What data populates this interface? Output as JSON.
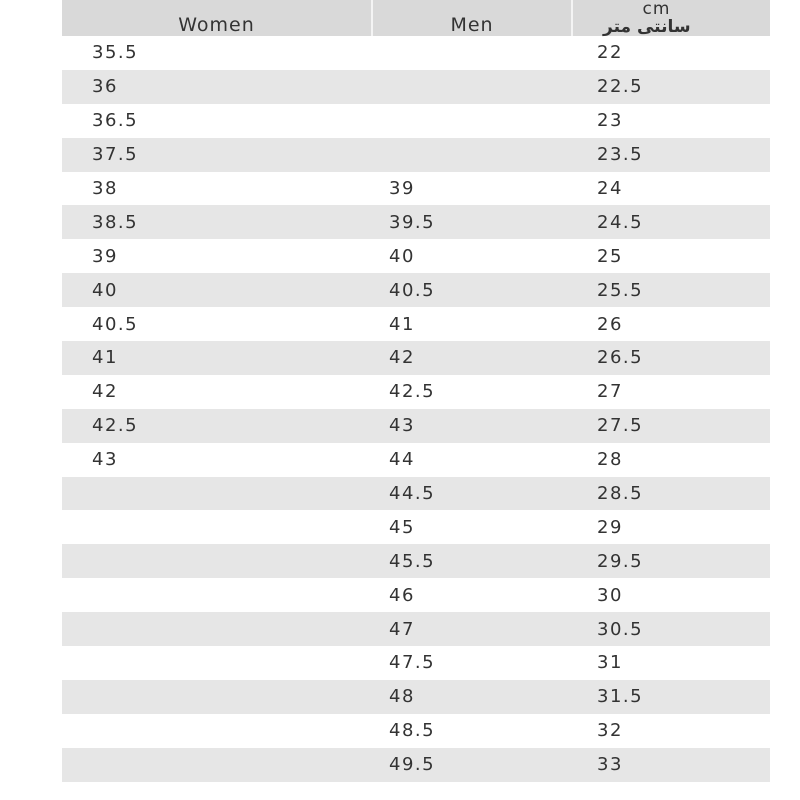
{
  "headers": {
    "women": "Women",
    "men": "Men",
    "cm": "cm",
    "cm_fa": "سانتی متر"
  },
  "rows": [
    [
      "35.5",
      "",
      "22"
    ],
    [
      "36",
      "",
      "22.5"
    ],
    [
      "36.5",
      "",
      "23"
    ],
    [
      "37.5",
      "",
      "23.5"
    ],
    [
      "38",
      "39",
      "24"
    ],
    [
      "38.5",
      "39.5",
      "24.5"
    ],
    [
      "39",
      "40",
      "25"
    ],
    [
      "40",
      "40.5",
      "25.5"
    ],
    [
      "40.5",
      "41",
      "26"
    ],
    [
      "41",
      "42",
      "26.5"
    ],
    [
      "42",
      "42.5",
      "27"
    ],
    [
      "42.5",
      "43",
      "27.5"
    ],
    [
      "43",
      "44",
      "28"
    ],
    [
      "",
      "44.5",
      "28.5"
    ],
    [
      "",
      "45",
      "29"
    ],
    [
      "",
      "45.5",
      "29.5"
    ],
    [
      "",
      "46",
      "30"
    ],
    [
      "",
      "47",
      "30.5"
    ],
    [
      "",
      "47.5",
      "31"
    ],
    [
      "",
      "48",
      "31.5"
    ],
    [
      "",
      "48.5",
      "32"
    ],
    [
      "",
      "49.5",
      "33"
    ]
  ]
}
